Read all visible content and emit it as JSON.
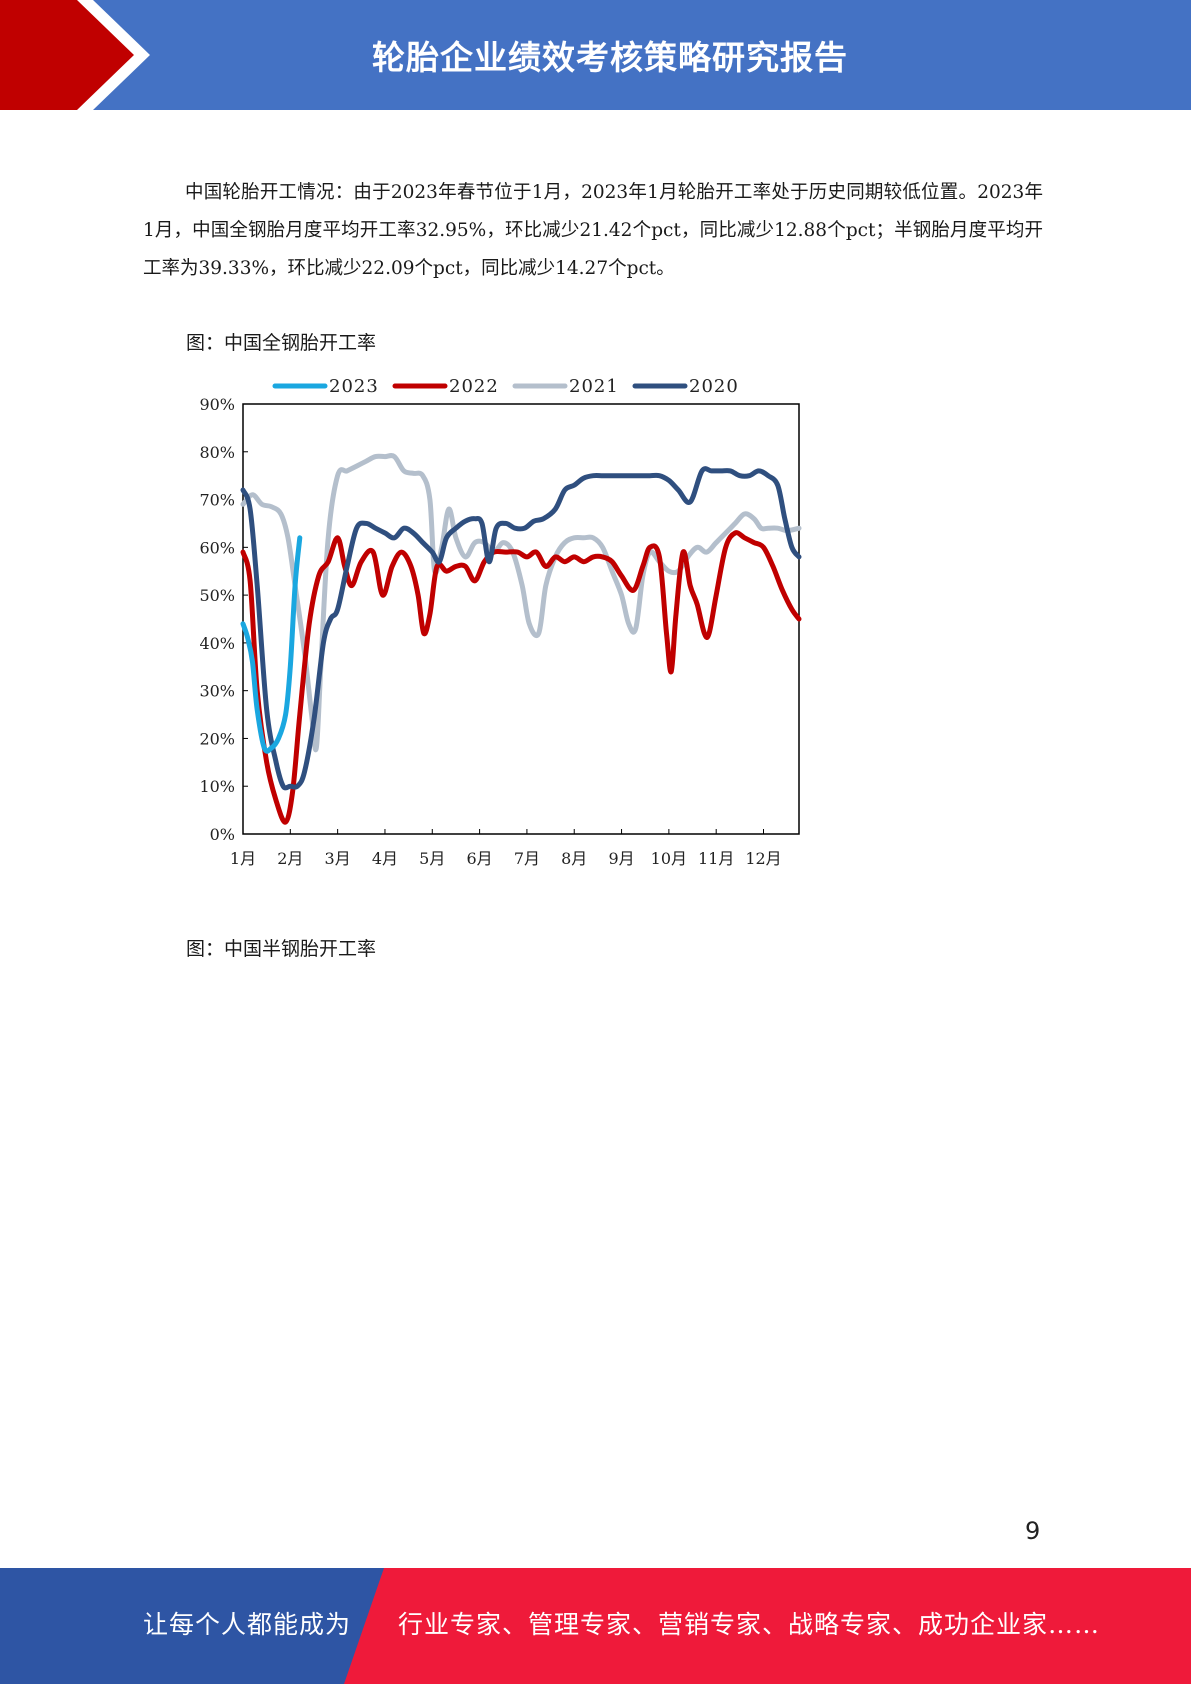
{
  "header": {
    "title": "轮胎企业绩效考核策略研究报告",
    "bar_color": "#4472c4",
    "arrow_color": "#c00000"
  },
  "body": {
    "paragraph": "中国轮胎开工情况：由于2023年春节位于1月，2023年1月轮胎开工率处于历史同期较低位置。2023年1月，中国全钢胎月度平均开工率32.95%，环比减少21.42个pct，同比减少12.88个pct；半钢胎月度平均开工率为39.33%，环比减少22.09个pct，同比减少14.27个pct。",
    "figure1_caption": "图：中国全钢胎开工率",
    "figure2_caption": "图：中国半钢胎开工率"
  },
  "chart_data": {
    "type": "line",
    "title": "",
    "xlabel": "",
    "ylabel": "",
    "ylim": [
      0,
      90
    ],
    "xlim": [
      1,
      12.75
    ],
    "x_ticks": [
      "1月",
      "2月",
      "3月",
      "4月",
      "5月",
      "6月",
      "7月",
      "8月",
      "9月",
      "10月",
      "11月",
      "12月"
    ],
    "y_ticks": [
      "0%",
      "10%",
      "20%",
      "30%",
      "40%",
      "50%",
      "60%",
      "70%",
      "80%",
      "90%"
    ],
    "legend_position": "top",
    "series": [
      {
        "name": "2023",
        "color": "#1aa7e0",
        "points": [
          [
            1.0,
            44
          ],
          [
            1.1,
            41
          ],
          [
            1.2,
            36
          ],
          [
            1.3,
            26
          ],
          [
            1.45,
            18
          ],
          [
            1.6,
            18
          ],
          [
            1.75,
            20
          ],
          [
            1.9,
            25
          ],
          [
            2.0,
            35
          ],
          [
            2.1,
            52
          ],
          [
            2.2,
            62
          ]
        ]
      },
      {
        "name": "2022",
        "color": "#c00000",
        "points": [
          [
            1.0,
            59
          ],
          [
            1.15,
            53
          ],
          [
            1.3,
            30
          ],
          [
            1.5,
            15
          ],
          [
            1.7,
            7
          ],
          [
            1.9,
            2.5
          ],
          [
            2.05,
            9
          ],
          [
            2.2,
            25
          ],
          [
            2.4,
            44
          ],
          [
            2.6,
            54
          ],
          [
            2.8,
            57
          ],
          [
            3.0,
            62
          ],
          [
            3.15,
            56
          ],
          [
            3.3,
            52
          ],
          [
            3.5,
            57
          ],
          [
            3.75,
            59
          ],
          [
            3.95,
            50
          ],
          [
            4.15,
            56
          ],
          [
            4.35,
            59
          ],
          [
            4.55,
            56
          ],
          [
            4.7,
            50
          ],
          [
            4.82,
            42
          ],
          [
            4.95,
            46
          ],
          [
            5.1,
            56
          ],
          [
            5.3,
            55
          ],
          [
            5.5,
            56
          ],
          [
            5.7,
            56
          ],
          [
            5.9,
            53
          ],
          [
            6.1,
            57
          ],
          [
            6.3,
            59
          ],
          [
            6.55,
            59
          ],
          [
            6.8,
            59
          ],
          [
            7.0,
            58
          ],
          [
            7.2,
            59
          ],
          [
            7.4,
            56
          ],
          [
            7.6,
            58
          ],
          [
            7.8,
            57
          ],
          [
            8.0,
            58
          ],
          [
            8.2,
            57
          ],
          [
            8.4,
            58
          ],
          [
            8.6,
            58
          ],
          [
            8.8,
            57
          ],
          [
            9.0,
            54
          ],
          [
            9.25,
            51
          ],
          [
            9.45,
            56
          ],
          [
            9.6,
            60
          ],
          [
            9.8,
            58
          ],
          [
            9.95,
            42
          ],
          [
            10.05,
            34
          ],
          [
            10.15,
            46
          ],
          [
            10.3,
            59
          ],
          [
            10.45,
            52
          ],
          [
            10.6,
            48
          ],
          [
            10.75,
            42
          ],
          [
            10.85,
            42
          ],
          [
            11.0,
            50
          ],
          [
            11.2,
            60
          ],
          [
            11.4,
            63
          ],
          [
            11.6,
            62
          ],
          [
            11.8,
            61
          ],
          [
            12.0,
            60
          ],
          [
            12.2,
            56
          ],
          [
            12.4,
            51
          ],
          [
            12.6,
            47
          ],
          [
            12.75,
            45
          ]
        ]
      },
      {
        "name": "2021",
        "color": "#b4bfcc",
        "points": [
          [
            1.0,
            69
          ],
          [
            1.2,
            71
          ],
          [
            1.4,
            69
          ],
          [
            1.6,
            68.5
          ],
          [
            1.8,
            67
          ],
          [
            1.95,
            62
          ],
          [
            2.1,
            52
          ],
          [
            2.3,
            38
          ],
          [
            2.45,
            25
          ],
          [
            2.55,
            18
          ],
          [
            2.65,
            36
          ],
          [
            2.8,
            62
          ],
          [
            3.0,
            75
          ],
          [
            3.2,
            76
          ],
          [
            3.4,
            77
          ],
          [
            3.6,
            78
          ],
          [
            3.8,
            79
          ],
          [
            4.0,
            79
          ],
          [
            4.2,
            79
          ],
          [
            4.4,
            76
          ],
          [
            4.6,
            75.5
          ],
          [
            4.8,
            75
          ],
          [
            4.95,
            70
          ],
          [
            5.05,
            55
          ],
          [
            5.2,
            60
          ],
          [
            5.35,
            68
          ],
          [
            5.5,
            62
          ],
          [
            5.7,
            58
          ],
          [
            5.9,
            61
          ],
          [
            6.1,
            61
          ],
          [
            6.3,
            59
          ],
          [
            6.5,
            61
          ],
          [
            6.7,
            59
          ],
          [
            6.9,
            52
          ],
          [
            7.05,
            44
          ],
          [
            7.25,
            42
          ],
          [
            7.4,
            52
          ],
          [
            7.6,
            58
          ],
          [
            7.8,
            61
          ],
          [
            8.0,
            62
          ],
          [
            8.2,
            62
          ],
          [
            8.4,
            62
          ],
          [
            8.6,
            60
          ],
          [
            8.8,
            55
          ],
          [
            9.0,
            50
          ],
          [
            9.15,
            44
          ],
          [
            9.3,
            43
          ],
          [
            9.45,
            54
          ],
          [
            9.6,
            59
          ],
          [
            9.8,
            57
          ],
          [
            10.0,
            55
          ],
          [
            10.2,
            55
          ],
          [
            10.4,
            58
          ],
          [
            10.6,
            60
          ],
          [
            10.8,
            59
          ],
          [
            11.0,
            61
          ],
          [
            11.2,
            63
          ],
          [
            11.4,
            65
          ],
          [
            11.6,
            67
          ],
          [
            11.8,
            66
          ],
          [
            11.95,
            64
          ],
          [
            12.1,
            64
          ],
          [
            12.3,
            64
          ],
          [
            12.5,
            63.5
          ],
          [
            12.75,
            64
          ]
        ]
      },
      {
        "name": "2020",
        "color": "#2f4f7f",
        "points": [
          [
            1.0,
            72
          ],
          [
            1.15,
            68
          ],
          [
            1.3,
            52
          ],
          [
            1.5,
            26
          ],
          [
            1.7,
            15
          ],
          [
            1.85,
            10
          ],
          [
            2.0,
            10
          ],
          [
            2.15,
            10
          ],
          [
            2.3,
            13
          ],
          [
            2.5,
            24
          ],
          [
            2.7,
            40
          ],
          [
            2.85,
            45
          ],
          [
            3.0,
            47
          ],
          [
            3.2,
            56
          ],
          [
            3.4,
            64
          ],
          [
            3.6,
            65
          ],
          [
            3.8,
            64
          ],
          [
            4.0,
            63
          ],
          [
            4.2,
            62
          ],
          [
            4.4,
            64
          ],
          [
            4.6,
            63
          ],
          [
            4.8,
            61
          ],
          [
            5.0,
            59
          ],
          [
            5.15,
            57
          ],
          [
            5.3,
            62
          ],
          [
            5.5,
            64
          ],
          [
            5.7,
            65.5
          ],
          [
            5.9,
            66
          ],
          [
            6.05,
            65
          ],
          [
            6.2,
            57
          ],
          [
            6.35,
            64
          ],
          [
            6.55,
            65
          ],
          [
            6.75,
            64
          ],
          [
            6.95,
            64
          ],
          [
            7.15,
            65.5
          ],
          [
            7.35,
            66
          ],
          [
            7.6,
            68
          ],
          [
            7.8,
            72
          ],
          [
            8.0,
            73
          ],
          [
            8.2,
            74.5
          ],
          [
            8.4,
            75
          ],
          [
            8.6,
            75
          ],
          [
            8.8,
            75
          ],
          [
            9.0,
            75
          ],
          [
            9.2,
            75
          ],
          [
            9.4,
            75
          ],
          [
            9.6,
            75
          ],
          [
            9.8,
            75
          ],
          [
            10.0,
            74
          ],
          [
            10.2,
            72
          ],
          [
            10.45,
            69.5
          ],
          [
            10.7,
            76
          ],
          [
            10.9,
            76
          ],
          [
            11.1,
            76
          ],
          [
            11.3,
            76
          ],
          [
            11.5,
            75
          ],
          [
            11.7,
            75
          ],
          [
            11.9,
            76
          ],
          [
            12.1,
            75
          ],
          [
            12.3,
            73
          ],
          [
            12.45,
            66
          ],
          [
            12.6,
            60
          ],
          [
            12.75,
            58
          ]
        ]
      }
    ]
  },
  "page_number": "9",
  "footer": {
    "left_text": "让每个人都能成为",
    "right_text": "行业专家、管理专家、营销专家、战略专家、成功企业家……",
    "left_color": "#2e55a4",
    "right_color": "#ef1a3a"
  }
}
